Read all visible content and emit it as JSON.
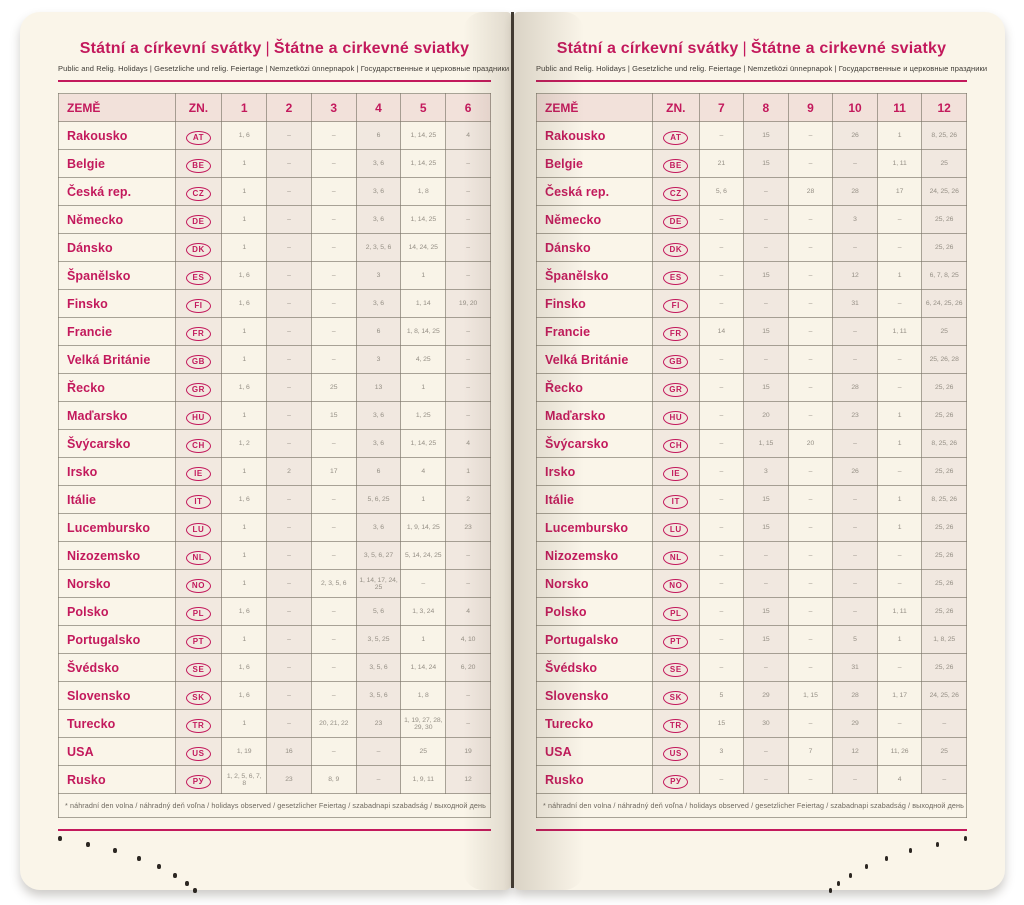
{
  "accent_color": "#c3195c",
  "paper_color": "#faf5e9",
  "title_cs": "Státní a církevní svátky",
  "title_sk": "Štátne a cirkevné sviatky",
  "title_separator": "|",
  "subtitle": "Public and Relig. Holidays | Gesetzliche und relig. Feiertage | Nemzetközi ünnepnapok | Государственные и церковные праздники",
  "footnote": "* náhradní den volna / náhradný deň voľna / holidays observed / gesetzlicher Feiertag / szabadnapi szabadság / выходной день",
  "left_page": {
    "col_headers": [
      "ZEMĚ",
      "ZN.",
      "1",
      "2",
      "3",
      "4",
      "5",
      "6"
    ],
    "rows": [
      {
        "country": "Rakousko",
        "code": "AT",
        "values": [
          "1, 6",
          "–",
          "–",
          "6",
          "1, 14, 25",
          "4"
        ]
      },
      {
        "country": "Belgie",
        "code": "BE",
        "values": [
          "1",
          "–",
          "–",
          "3, 6",
          "1, 14, 25",
          "–"
        ]
      },
      {
        "country": "Česká rep.",
        "code": "CZ",
        "values": [
          "1",
          "–",
          "–",
          "3, 6",
          "1, 8",
          "–"
        ]
      },
      {
        "country": "Německo",
        "code": "DE",
        "values": [
          "1",
          "–",
          "–",
          "3, 6",
          "1, 14, 25",
          "–"
        ]
      },
      {
        "country": "Dánsko",
        "code": "DK",
        "values": [
          "1",
          "–",
          "–",
          "2, 3, 5, 6",
          "14, 24, 25",
          "–"
        ]
      },
      {
        "country": "Španělsko",
        "code": "ES",
        "values": [
          "1, 6",
          "–",
          "–",
          "3",
          "1",
          "–"
        ]
      },
      {
        "country": "Finsko",
        "code": "FI",
        "values": [
          "1, 6",
          "–",
          "–",
          "3, 6",
          "1, 14",
          "19, 20"
        ]
      },
      {
        "country": "Francie",
        "code": "FR",
        "values": [
          "1",
          "–",
          "–",
          "6",
          "1, 8, 14, 25",
          "–"
        ]
      },
      {
        "country": "Velká Británie",
        "code": "GB",
        "values": [
          "1",
          "–",
          "–",
          "3",
          "4, 25",
          "–"
        ]
      },
      {
        "country": "Řecko",
        "code": "GR",
        "values": [
          "1, 6",
          "–",
          "25",
          "13",
          "1",
          "–"
        ]
      },
      {
        "country": "Maďarsko",
        "code": "HU",
        "values": [
          "1",
          "–",
          "15",
          "3, 6",
          "1, 25",
          "–"
        ]
      },
      {
        "country": "Švýcarsko",
        "code": "CH",
        "values": [
          "1, 2",
          "–",
          "–",
          "3, 6",
          "1, 14, 25",
          "4"
        ]
      },
      {
        "country": "Irsko",
        "code": "IE",
        "values": [
          "1",
          "2",
          "17",
          "6",
          "4",
          "1"
        ]
      },
      {
        "country": "Itálie",
        "code": "IT",
        "values": [
          "1, 6",
          "–",
          "–",
          "5, 6, 25",
          "1",
          "2"
        ]
      },
      {
        "country": "Lucembursko",
        "code": "LU",
        "values": [
          "1",
          "–",
          "–",
          "3, 6",
          "1, 9, 14, 25",
          "23"
        ]
      },
      {
        "country": "Nizozemsko",
        "code": "NL",
        "values": [
          "1",
          "–",
          "–",
          "3, 5, 6, 27",
          "5, 14, 24, 25",
          "–"
        ]
      },
      {
        "country": "Norsko",
        "code": "NO",
        "values": [
          "1",
          "–",
          "2, 3, 5, 6",
          "1, 14, 17, 24, 25",
          "–",
          "–"
        ]
      },
      {
        "country": "Polsko",
        "code": "PL",
        "values": [
          "1, 6",
          "–",
          "–",
          "5, 6",
          "1, 3, 24",
          "4"
        ]
      },
      {
        "country": "Portugalsko",
        "code": "PT",
        "values": [
          "1",
          "–",
          "–",
          "3, 5, 25",
          "1",
          "4, 10"
        ]
      },
      {
        "country": "Švédsko",
        "code": "SE",
        "values": [
          "1, 6",
          "–",
          "–",
          "3, 5, 6",
          "1, 14, 24",
          "6, 20"
        ]
      },
      {
        "country": "Slovensko",
        "code": "SK",
        "values": [
          "1, 6",
          "–",
          "–",
          "3, 5, 6",
          "1, 8",
          "–"
        ]
      },
      {
        "country": "Turecko",
        "code": "TR",
        "values": [
          "1",
          "–",
          "20, 21, 22",
          "23",
          "1, 19, 27, 28, 29, 30",
          "–"
        ]
      },
      {
        "country": "USA",
        "code": "US",
        "values": [
          "1, 19",
          "16",
          "–",
          "–",
          "25",
          "19"
        ]
      },
      {
        "country": "Rusko",
        "code": "РУ",
        "values": [
          "1, 2, 5, 6, 7, 8",
          "23",
          "8, 9",
          "–",
          "1, 9, 11",
          "12"
        ]
      }
    ]
  },
  "right_page": {
    "col_headers": [
      "ZEMĚ",
      "ZN.",
      "7",
      "8",
      "9",
      "10",
      "11",
      "12"
    ],
    "rows": [
      {
        "country": "Rakousko",
        "code": "AT",
        "values": [
          "–",
          "15",
          "–",
          "26",
          "1",
          "8, 25, 26"
        ]
      },
      {
        "country": "Belgie",
        "code": "BE",
        "values": [
          "21",
          "15",
          "–",
          "–",
          "1, 11",
          "25"
        ]
      },
      {
        "country": "Česká rep.",
        "code": "CZ",
        "values": [
          "5, 6",
          "–",
          "28",
          "28",
          "17",
          "24, 25, 26"
        ]
      },
      {
        "country": "Německo",
        "code": "DE",
        "values": [
          "–",
          "–",
          "–",
          "3",
          "–",
          "25, 26"
        ]
      },
      {
        "country": "Dánsko",
        "code": "DK",
        "values": [
          "–",
          "–",
          "–",
          "–",
          "–",
          "25, 26"
        ]
      },
      {
        "country": "Španělsko",
        "code": "ES",
        "values": [
          "–",
          "15",
          "–",
          "12",
          "1",
          "6, 7, 8, 25"
        ]
      },
      {
        "country": "Finsko",
        "code": "FI",
        "values": [
          "–",
          "–",
          "–",
          "31",
          "–",
          "6, 24, 25, 26"
        ]
      },
      {
        "country": "Francie",
        "code": "FR",
        "values": [
          "14",
          "15",
          "–",
          "–",
          "1, 11",
          "25"
        ]
      },
      {
        "country": "Velká Británie",
        "code": "GB",
        "values": [
          "–",
          "–",
          "–",
          "–",
          "–",
          "25, 26, 28"
        ]
      },
      {
        "country": "Řecko",
        "code": "GR",
        "values": [
          "–",
          "15",
          "–",
          "28",
          "–",
          "25, 26"
        ]
      },
      {
        "country": "Maďarsko",
        "code": "HU",
        "values": [
          "–",
          "20",
          "–",
          "23",
          "1",
          "25, 26"
        ]
      },
      {
        "country": "Švýcarsko",
        "code": "CH",
        "values": [
          "–",
          "1, 15",
          "20",
          "–",
          "1",
          "8, 25, 26"
        ]
      },
      {
        "country": "Irsko",
        "code": "IE",
        "values": [
          "–",
          "3",
          "–",
          "26",
          "–",
          "25, 26"
        ]
      },
      {
        "country": "Itálie",
        "code": "IT",
        "values": [
          "–",
          "15",
          "–",
          "–",
          "1",
          "8, 25, 26"
        ]
      },
      {
        "country": "Lucembursko",
        "code": "LU",
        "values": [
          "–",
          "15",
          "–",
          "–",
          "1",
          "25, 26"
        ]
      },
      {
        "country": "Nizozemsko",
        "code": "NL",
        "values": [
          "–",
          "–",
          "–",
          "–",
          "–",
          "25, 26"
        ]
      },
      {
        "country": "Norsko",
        "code": "NO",
        "values": [
          "–",
          "–",
          "–",
          "–",
          "–",
          "25, 26"
        ]
      },
      {
        "country": "Polsko",
        "code": "PL",
        "values": [
          "–",
          "15",
          "–",
          "–",
          "1, 11",
          "25, 26"
        ]
      },
      {
        "country": "Portugalsko",
        "code": "PT",
        "values": [
          "–",
          "15",
          "–",
          "5",
          "1",
          "1, 8, 25"
        ]
      },
      {
        "country": "Švédsko",
        "code": "SE",
        "values": [
          "–",
          "–",
          "–",
          "31",
          "–",
          "25, 26"
        ]
      },
      {
        "country": "Slovensko",
        "code": "SK",
        "values": [
          "5",
          "29",
          "1, 15",
          "28",
          "1, 17",
          "24, 25, 26"
        ]
      },
      {
        "country": "Turecko",
        "code": "TR",
        "values": [
          "15",
          "30",
          "–",
          "29",
          "–",
          "–"
        ]
      },
      {
        "country": "USA",
        "code": "US",
        "values": [
          "3",
          "–",
          "7",
          "12",
          "11, 26",
          "25"
        ]
      },
      {
        "country": "Rusko",
        "code": "РУ",
        "values": [
          "–",
          "–",
          "–",
          "–",
          "4",
          "–"
        ]
      }
    ]
  }
}
